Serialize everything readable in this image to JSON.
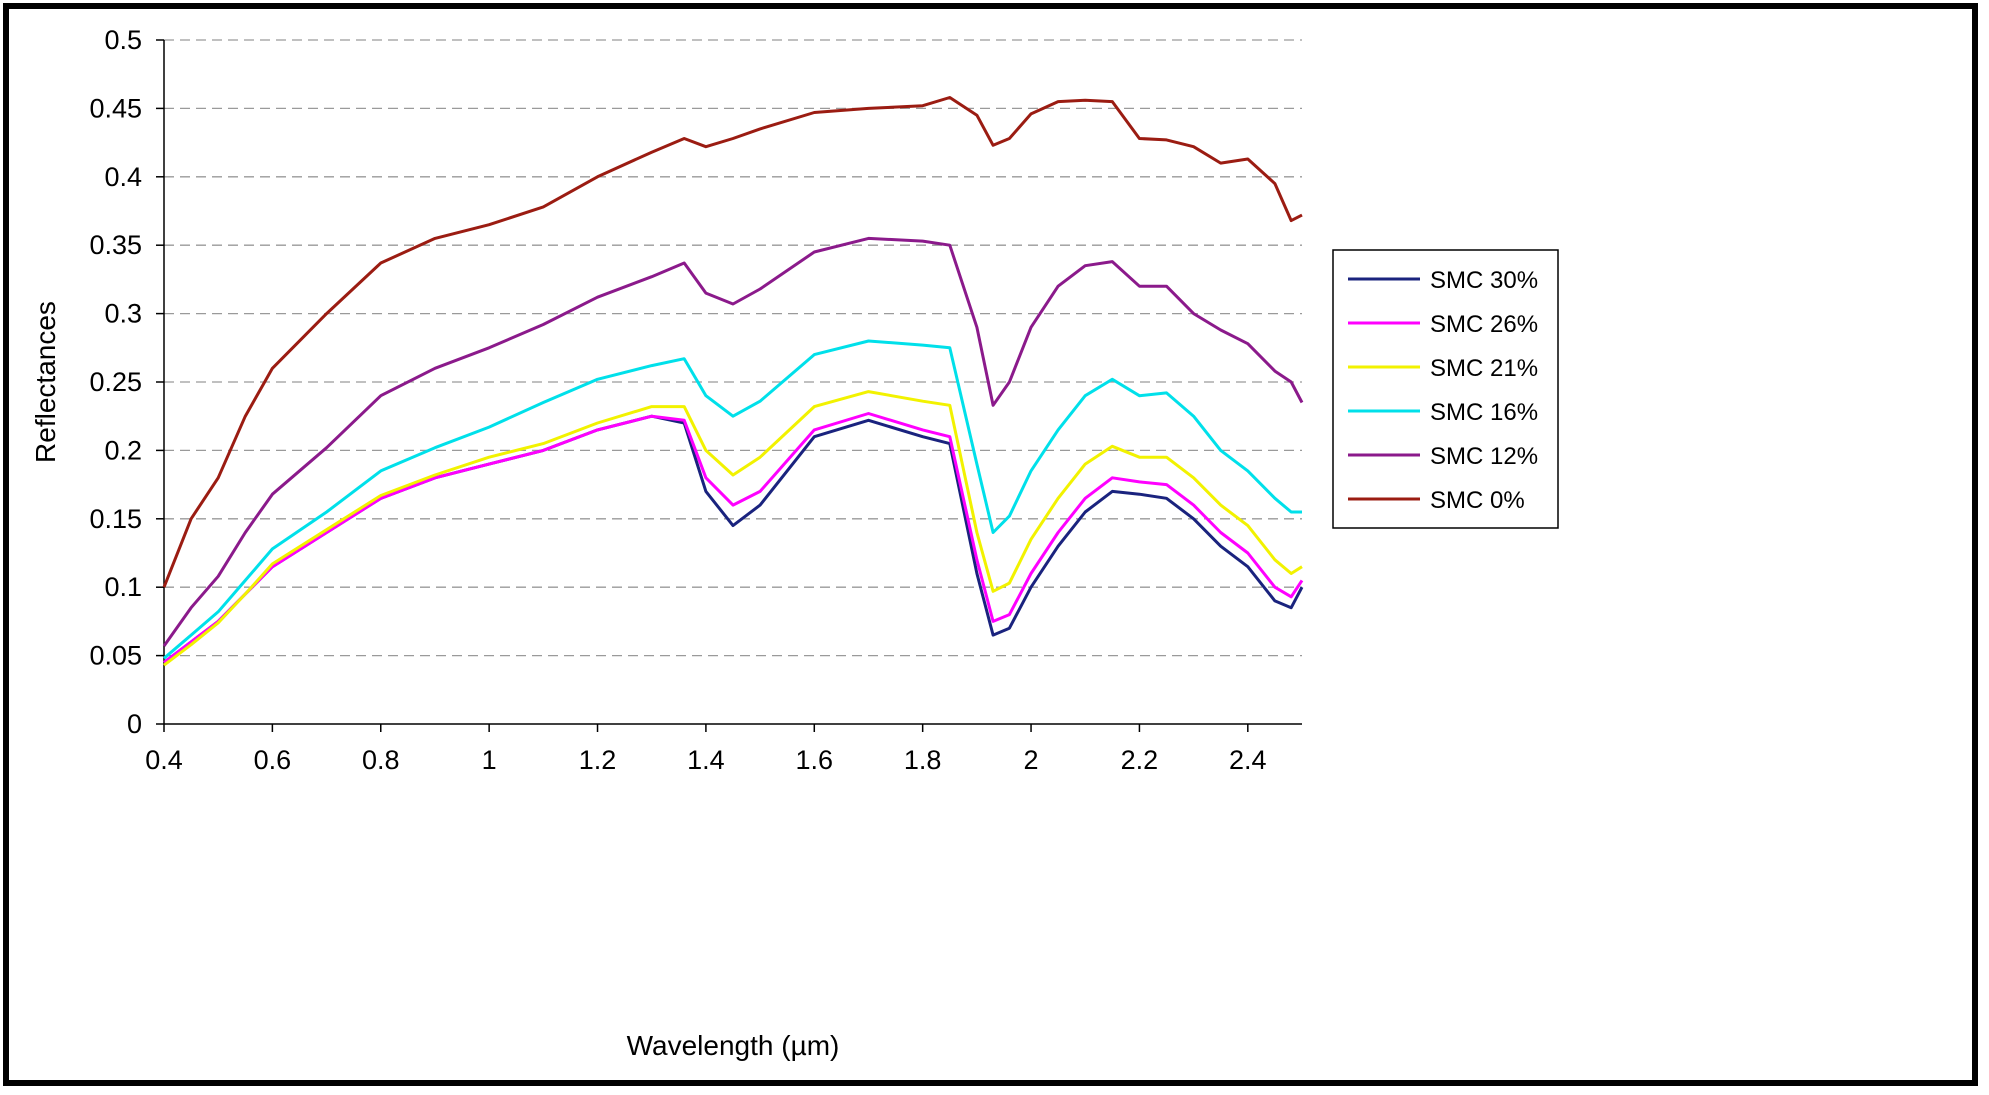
{
  "chart_data": {
    "type": "line",
    "title": "",
    "xlabel": "Wavelength (µm)",
    "ylabel": "Reflectances",
    "xlim": [
      0.4,
      2.5
    ],
    "ylim": [
      0,
      0.5
    ],
    "x_ticks": [
      0.4,
      0.6,
      0.8,
      1,
      1.2,
      1.4,
      1.6,
      1.8,
      2,
      2.2,
      2.4
    ],
    "x_tick_labels": [
      "0.4",
      "0.6",
      "0.8",
      "1",
      "1.2",
      "1.4",
      "1.6",
      "1.8",
      "2",
      "2.2",
      "2.4"
    ],
    "y_ticks": [
      0,
      0.05,
      0.1,
      0.15,
      0.2,
      0.25,
      0.3,
      0.35,
      0.4,
      0.45,
      0.5
    ],
    "y_tick_labels": [
      "0",
      "0.05",
      "0.1",
      "0.15",
      "0.2",
      "0.25",
      "0.3",
      "0.35",
      "0.4",
      "0.45",
      "0.5"
    ],
    "grid": "horizontal dashed",
    "legend_position": "right",
    "x": [
      0.4,
      0.45,
      0.5,
      0.55,
      0.6,
      0.7,
      0.8,
      0.9,
      1.0,
      1.1,
      1.2,
      1.3,
      1.36,
      1.4,
      1.45,
      1.5,
      1.6,
      1.7,
      1.8,
      1.85,
      1.9,
      1.93,
      1.96,
      2.0,
      2.05,
      2.1,
      2.15,
      2.2,
      2.25,
      2.3,
      2.35,
      2.4,
      2.45,
      2.48,
      2.5
    ],
    "series": [
      {
        "name": "SMC 30%",
        "color": "#1a237e",
        "values": [
          0.045,
          0.06,
          0.075,
          0.095,
          0.115,
          0.14,
          0.165,
          0.18,
          0.19,
          0.2,
          0.215,
          0.225,
          0.22,
          0.17,
          0.145,
          0.16,
          0.21,
          0.222,
          0.21,
          0.205,
          0.11,
          0.065,
          0.07,
          0.1,
          0.13,
          0.155,
          0.17,
          0.168,
          0.165,
          0.15,
          0.13,
          0.115,
          0.09,
          0.085,
          0.1
        ]
      },
      {
        "name": "SMC 26%",
        "color": "#ff00ff",
        "values": [
          0.045,
          0.06,
          0.075,
          0.095,
          0.115,
          0.14,
          0.165,
          0.18,
          0.19,
          0.2,
          0.215,
          0.225,
          0.222,
          0.18,
          0.16,
          0.17,
          0.215,
          0.227,
          0.215,
          0.21,
          0.12,
          0.075,
          0.08,
          0.11,
          0.14,
          0.165,
          0.18,
          0.177,
          0.175,
          0.16,
          0.14,
          0.125,
          0.1,
          0.093,
          0.105
        ]
      },
      {
        "name": "SMC 21%",
        "color": "#f2f200",
        "values": [
          0.043,
          0.058,
          0.074,
          0.095,
          0.117,
          0.142,
          0.167,
          0.182,
          0.195,
          0.205,
          0.22,
          0.232,
          0.232,
          0.2,
          0.182,
          0.195,
          0.232,
          0.243,
          0.236,
          0.233,
          0.14,
          0.097,
          0.103,
          0.135,
          0.165,
          0.19,
          0.203,
          0.195,
          0.195,
          0.18,
          0.16,
          0.145,
          0.12,
          0.11,
          0.115
        ]
      },
      {
        "name": "SMC 16%",
        "color": "#00e0ea",
        "values": [
          0.048,
          0.065,
          0.082,
          0.105,
          0.128,
          0.155,
          0.185,
          0.202,
          0.217,
          0.235,
          0.252,
          0.262,
          0.267,
          0.24,
          0.225,
          0.236,
          0.27,
          0.28,
          0.277,
          0.275,
          0.19,
          0.14,
          0.152,
          0.185,
          0.215,
          0.24,
          0.252,
          0.24,
          0.242,
          0.225,
          0.2,
          0.185,
          0.165,
          0.155,
          0.155
        ]
      },
      {
        "name": "SMC 12%",
        "color": "#8b1a8b",
        "values": [
          0.057,
          0.085,
          0.108,
          0.14,
          0.168,
          0.202,
          0.24,
          0.26,
          0.275,
          0.292,
          0.312,
          0.327,
          0.337,
          0.315,
          0.307,
          0.318,
          0.345,
          0.355,
          0.353,
          0.35,
          0.29,
          0.233,
          0.25,
          0.29,
          0.32,
          0.335,
          0.338,
          0.32,
          0.32,
          0.3,
          0.288,
          0.278,
          0.258,
          0.25,
          0.235
        ]
      },
      {
        "name": "SMC 0%",
        "color": "#9b1c12",
        "values": [
          0.1,
          0.15,
          0.18,
          0.225,
          0.26,
          0.3,
          0.337,
          0.355,
          0.365,
          0.378,
          0.4,
          0.418,
          0.428,
          0.422,
          0.428,
          0.435,
          0.447,
          0.45,
          0.452,
          0.458,
          0.445,
          0.423,
          0.428,
          0.446,
          0.455,
          0.456,
          0.455,
          0.428,
          0.427,
          0.422,
          0.41,
          0.413,
          0.395,
          0.368,
          0.372
        ]
      }
    ]
  }
}
